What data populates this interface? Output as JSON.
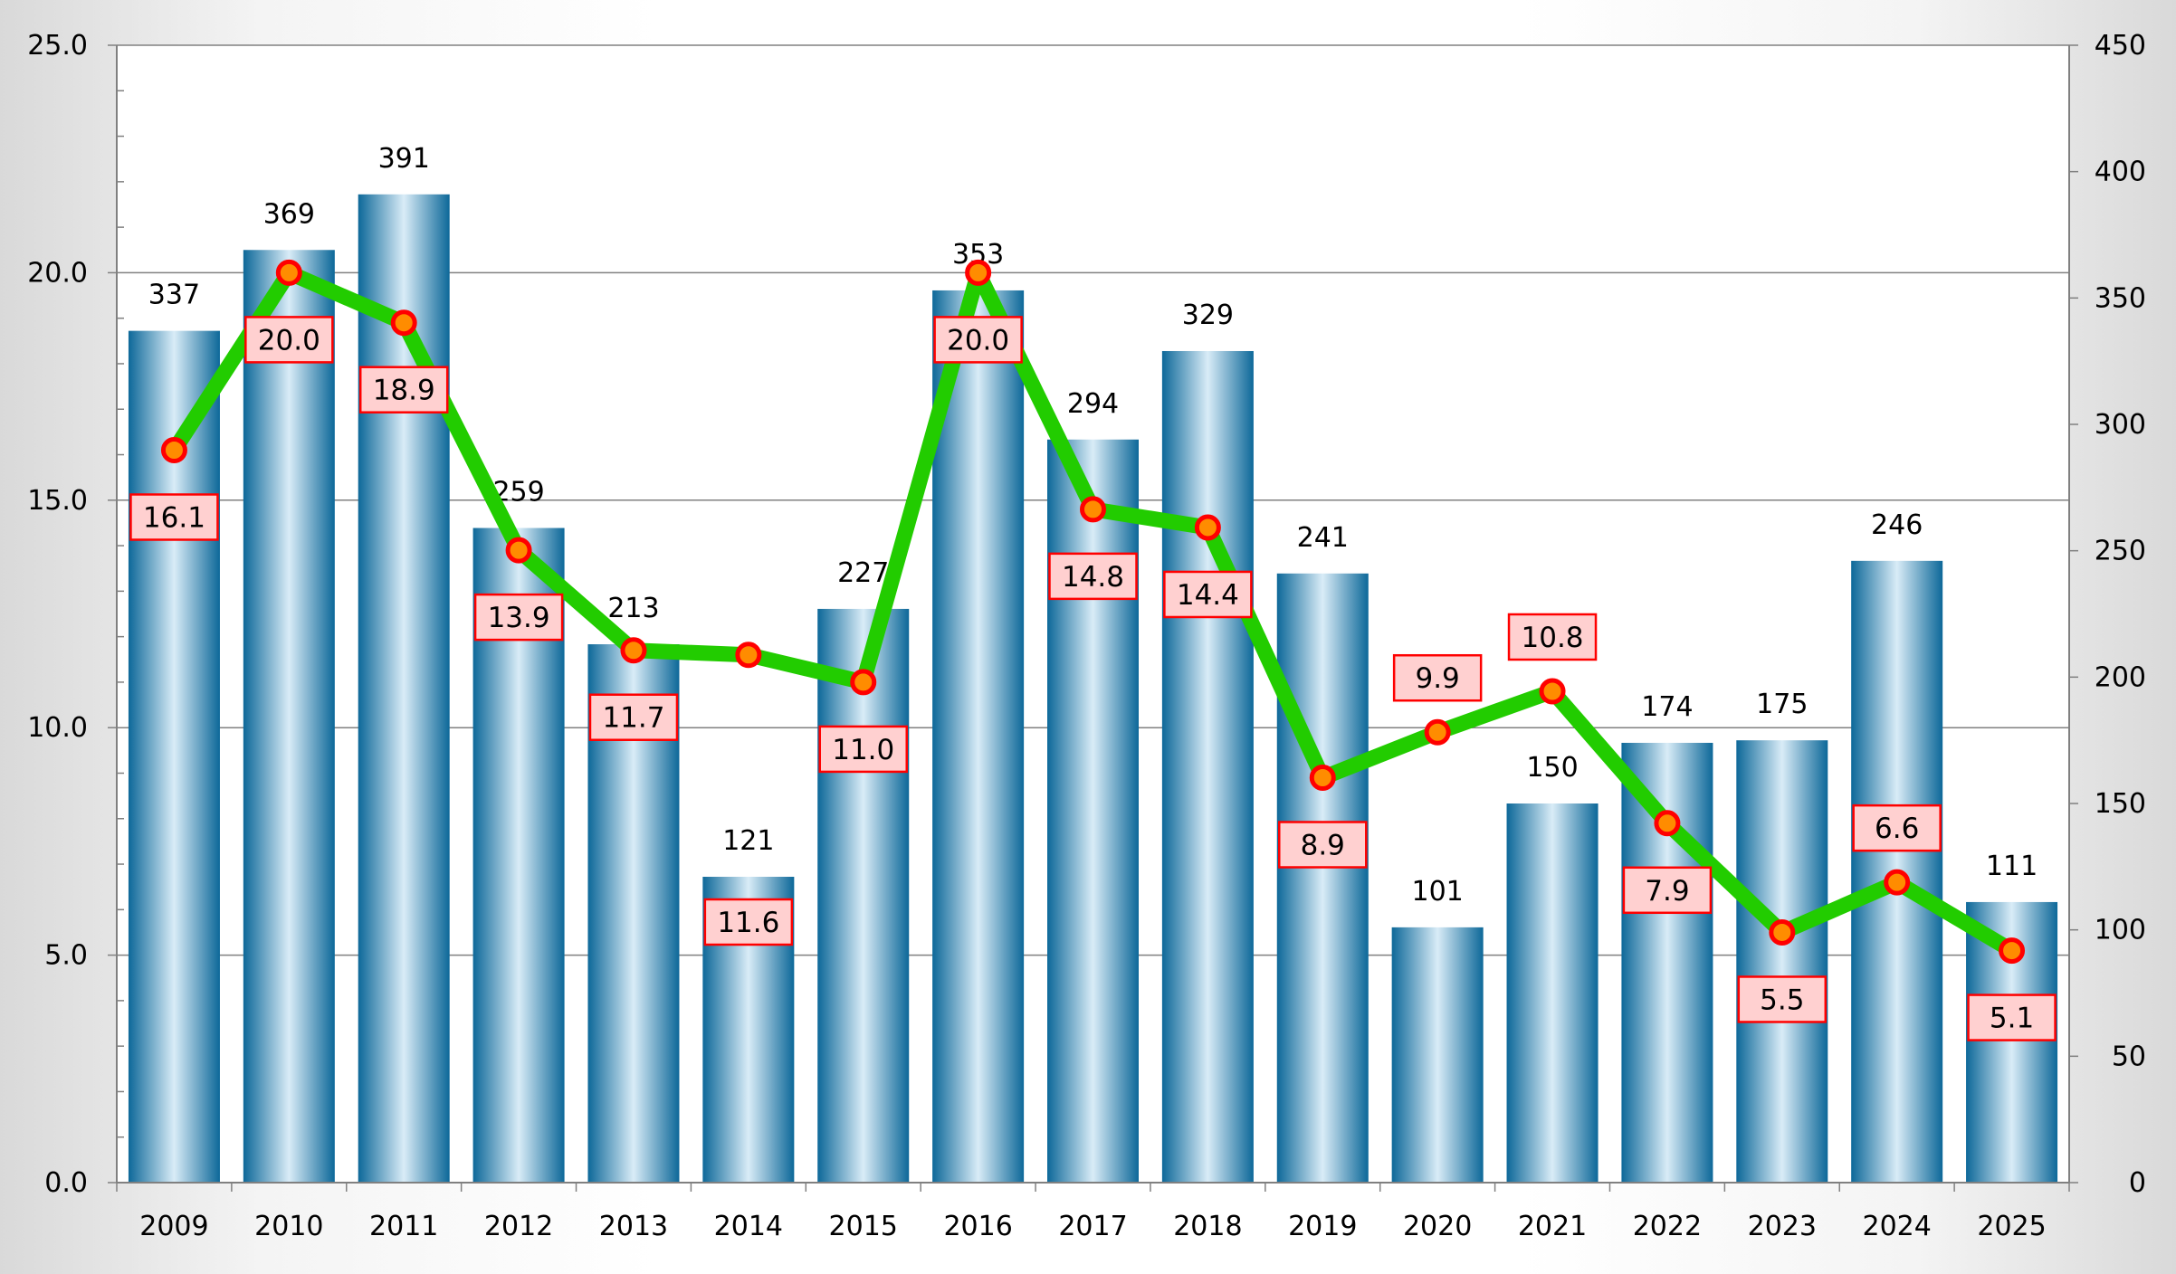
{
  "chart_data": {
    "type": "bar+line",
    "categories": [
      "2009",
      "2010",
      "2011",
      "2012",
      "2013",
      "2014",
      "2015",
      "2016",
      "2017",
      "2018",
      "2019",
      "2020",
      "2021",
      "2022",
      "2023",
      "2024",
      "2025"
    ],
    "series": [
      {
        "type": "bar",
        "axis": "right",
        "values": [
          337,
          369,
          391,
          259,
          213,
          121,
          227,
          353,
          294,
          329,
          241,
          101,
          150,
          174,
          175,
          246,
          111
        ]
      },
      {
        "type": "line",
        "axis": "left",
        "values": [
          16.1,
          20.0,
          18.9,
          13.9,
          11.7,
          11.6,
          11.0,
          20.0,
          14.8,
          14.4,
          8.9,
          9.9,
          10.8,
          7.9,
          5.5,
          6.6,
          5.1
        ]
      }
    ],
    "y_left": {
      "min": 0,
      "max": 25,
      "ticks": [
        "0.0",
        "5.0",
        "10.0",
        "15.0",
        "20.0",
        "25.0"
      ]
    },
    "y_right": {
      "min": 0,
      "max": 450,
      "ticks": [
        "0",
        "50",
        "100",
        "150",
        "200",
        "250",
        "300",
        "350",
        "400",
        "450"
      ]
    },
    "line_labels": [
      "16.1",
      "20.0",
      "18.9",
      "13.9",
      "11.7",
      "11.6",
      "11.0",
      "20.0",
      "14.8",
      "14.4",
      "8.9",
      "9.9",
      "10.8",
      "7.9",
      "5.5",
      "6.6",
      "5.1"
    ],
    "line_label_position": [
      "below",
      "below",
      "below",
      "below",
      "below",
      "below",
      "below",
      "below",
      "below",
      "below",
      "below",
      "above",
      "above",
      "below",
      "below",
      "above",
      "below"
    ],
    "grid": true,
    "colors": {
      "bar": "#0d6899",
      "bar_highlight": "#d9ecf7",
      "line": "#22cc00",
      "marker_fill": "#ff8c00",
      "marker_stroke": "#ff0000",
      "label_fill": "#ffd0d0",
      "label_stroke": "#ff0000"
    }
  }
}
